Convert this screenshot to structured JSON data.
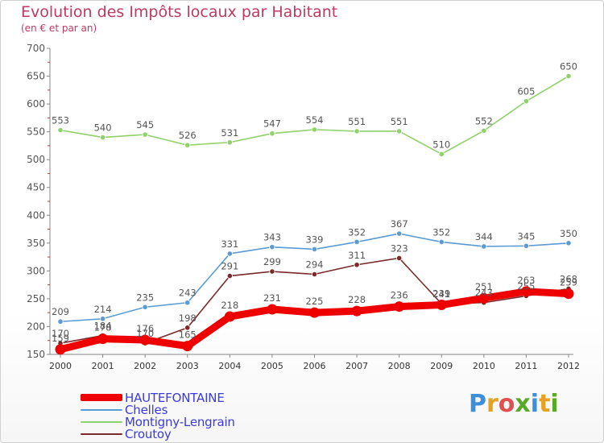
{
  "title": "Evolution des Impôts locaux par Habitant",
  "subtitle": "(en € et par an)",
  "colors": {
    "title": "#c0395f",
    "axis": "#7a7a7a",
    "label": "#555555",
    "legend_text": "#3a3ae0"
  },
  "chart_data": {
    "type": "line",
    "title": "Evolution des Impôts locaux par Habitant",
    "subtitle": "(en € et par an)",
    "xlabel": "",
    "ylabel": "",
    "x": [
      "2000",
      "2001",
      "2002",
      "2003",
      "2004",
      "2005",
      "2006",
      "2007",
      "2008",
      "2009",
      "2010",
      "2011",
      "2012"
    ],
    "ylim": [
      150,
      700
    ],
    "yticks": [
      150,
      200,
      250,
      300,
      350,
      400,
      450,
      500,
      550,
      600,
      650,
      700
    ],
    "grid": false,
    "legend_position": "bottom-left",
    "series": [
      {
        "name": "HAUTEFONTAINE",
        "color": "#ee0000",
        "style": "thick",
        "values": [
          159,
          178,
          176,
          165,
          218,
          231,
          225,
          228,
          236,
          239,
          251,
          263,
          259
        ]
      },
      {
        "name": "Chelles",
        "color": "#5b9bd5",
        "style": "thin",
        "values": [
          209,
          214,
          235,
          243,
          331,
          343,
          339,
          352,
          367,
          352,
          344,
          345,
          350
        ]
      },
      {
        "name": "Montigny-Lengrain",
        "color": "#8fd16a",
        "style": "thin",
        "values": [
          553,
          540,
          545,
          526,
          531,
          547,
          554,
          551,
          551,
          510,
          552,
          605,
          650
        ]
      },
      {
        "name": "Croutoy",
        "color": "#7a2a2a",
        "style": "thin",
        "values": [
          170,
          184,
          170,
          198,
          291,
          299,
          294,
          311,
          323,
          241,
          243,
          255,
          268
        ]
      }
    ]
  },
  "logo": {
    "letters": [
      "P",
      "r",
      "o",
      "x",
      "i",
      "t",
      "i"
    ],
    "colors": [
      "#3d8fd8",
      "#e8a020",
      "#e05050",
      "#5aa828",
      "#3d8fd8",
      "#e8a020",
      "#5aa828"
    ]
  }
}
